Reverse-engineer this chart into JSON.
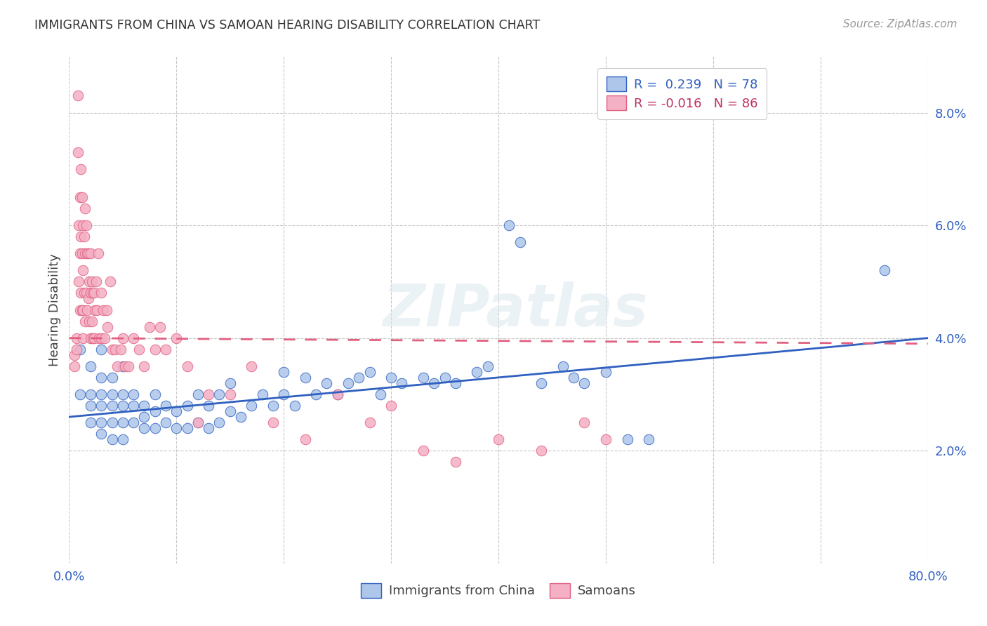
{
  "title": "IMMIGRANTS FROM CHINA VS SAMOAN HEARING DISABILITY CORRELATION CHART",
  "source": "Source: ZipAtlas.com",
  "ylabel": "Hearing Disability",
  "legend_entry_1": "R =  0.239   N = 78",
  "legend_entry_2": "R = -0.016   N = 86",
  "legend_labels": [
    "Immigrants from China",
    "Samoans"
  ],
  "xlim": [
    0,
    0.8
  ],
  "ylim": [
    0,
    0.09
  ],
  "xticks": [
    0.0,
    0.1,
    0.2,
    0.3,
    0.4,
    0.5,
    0.6,
    0.7,
    0.8
  ],
  "xtick_labels": [
    "0.0%",
    "",
    "",
    "",
    "",
    "",
    "",
    "",
    "80.0%"
  ],
  "yticks_right": [
    0.02,
    0.04,
    0.06,
    0.08
  ],
  "ytick_labels_right": [
    "2.0%",
    "4.0%",
    "6.0%",
    "8.0%"
  ],
  "watermark": "ZIPatlas",
  "blue_line_x0": 0.0,
  "blue_line_y0": 0.026,
  "blue_line_x1": 0.8,
  "blue_line_y1": 0.04,
  "pink_line_x0": 0.0,
  "pink_line_y0": 0.04,
  "pink_line_x1": 0.8,
  "pink_line_y1": 0.039,
  "blue_scatter_x": [
    0.01,
    0.01,
    0.02,
    0.02,
    0.02,
    0.02,
    0.03,
    0.03,
    0.03,
    0.03,
    0.03,
    0.03,
    0.04,
    0.04,
    0.04,
    0.04,
    0.04,
    0.05,
    0.05,
    0.05,
    0.05,
    0.05,
    0.06,
    0.06,
    0.06,
    0.07,
    0.07,
    0.07,
    0.08,
    0.08,
    0.08,
    0.09,
    0.09,
    0.1,
    0.1,
    0.11,
    0.11,
    0.12,
    0.12,
    0.13,
    0.13,
    0.14,
    0.14,
    0.15,
    0.15,
    0.16,
    0.17,
    0.18,
    0.19,
    0.2,
    0.2,
    0.21,
    0.22,
    0.23,
    0.24,
    0.25,
    0.26,
    0.27,
    0.28,
    0.29,
    0.3,
    0.31,
    0.33,
    0.34,
    0.35,
    0.36,
    0.38,
    0.39,
    0.41,
    0.42,
    0.44,
    0.46,
    0.47,
    0.48,
    0.5,
    0.52,
    0.54,
    0.76
  ],
  "blue_scatter_y": [
    0.038,
    0.03,
    0.035,
    0.03,
    0.028,
    0.025,
    0.038,
    0.033,
    0.03,
    0.028,
    0.025,
    0.023,
    0.033,
    0.03,
    0.028,
    0.025,
    0.022,
    0.035,
    0.03,
    0.028,
    0.025,
    0.022,
    0.03,
    0.028,
    0.025,
    0.028,
    0.026,
    0.024,
    0.03,
    0.027,
    0.024,
    0.028,
    0.025,
    0.027,
    0.024,
    0.028,
    0.024,
    0.03,
    0.025,
    0.028,
    0.024,
    0.03,
    0.025,
    0.032,
    0.027,
    0.026,
    0.028,
    0.03,
    0.028,
    0.034,
    0.03,
    0.028,
    0.033,
    0.03,
    0.032,
    0.03,
    0.032,
    0.033,
    0.034,
    0.03,
    0.033,
    0.032,
    0.033,
    0.032,
    0.033,
    0.032,
    0.034,
    0.035,
    0.06,
    0.057,
    0.032,
    0.035,
    0.033,
    0.032,
    0.034,
    0.022,
    0.022,
    0.052
  ],
  "pink_scatter_x": [
    0.005,
    0.005,
    0.007,
    0.007,
    0.008,
    0.008,
    0.009,
    0.009,
    0.01,
    0.01,
    0.01,
    0.011,
    0.011,
    0.011,
    0.012,
    0.012,
    0.012,
    0.013,
    0.013,
    0.013,
    0.013,
    0.014,
    0.014,
    0.015,
    0.015,
    0.015,
    0.016,
    0.016,
    0.017,
    0.017,
    0.018,
    0.018,
    0.019,
    0.019,
    0.02,
    0.02,
    0.02,
    0.021,
    0.021,
    0.022,
    0.022,
    0.023,
    0.023,
    0.024,
    0.025,
    0.026,
    0.027,
    0.028,
    0.03,
    0.03,
    0.032,
    0.033,
    0.035,
    0.036,
    0.038,
    0.04,
    0.043,
    0.045,
    0.048,
    0.05,
    0.052,
    0.055,
    0.06,
    0.065,
    0.07,
    0.075,
    0.08,
    0.085,
    0.09,
    0.1,
    0.11,
    0.12,
    0.13,
    0.15,
    0.17,
    0.19,
    0.22,
    0.25,
    0.28,
    0.3,
    0.33,
    0.36,
    0.4,
    0.44,
    0.48,
    0.5
  ],
  "pink_scatter_y": [
    0.037,
    0.035,
    0.04,
    0.038,
    0.083,
    0.073,
    0.06,
    0.05,
    0.065,
    0.055,
    0.045,
    0.07,
    0.058,
    0.048,
    0.065,
    0.055,
    0.045,
    0.06,
    0.052,
    0.045,
    0.04,
    0.058,
    0.048,
    0.063,
    0.055,
    0.043,
    0.06,
    0.048,
    0.055,
    0.045,
    0.055,
    0.047,
    0.05,
    0.043,
    0.055,
    0.048,
    0.04,
    0.05,
    0.043,
    0.048,
    0.04,
    0.048,
    0.04,
    0.045,
    0.05,
    0.045,
    0.055,
    0.04,
    0.048,
    0.04,
    0.045,
    0.04,
    0.045,
    0.042,
    0.05,
    0.038,
    0.038,
    0.035,
    0.038,
    0.04,
    0.035,
    0.035,
    0.04,
    0.038,
    0.035,
    0.042,
    0.038,
    0.042,
    0.038,
    0.04,
    0.035,
    0.025,
    0.03,
    0.03,
    0.035,
    0.025,
    0.022,
    0.03,
    0.025,
    0.028,
    0.02,
    0.018,
    0.022,
    0.02,
    0.025,
    0.022
  ],
  "blue_line_color": "#3060c0",
  "pink_line_color": "#e06080",
  "blue_marker_face": "#adc6ea",
  "blue_marker_edge": "#3060c0",
  "pink_marker_face": "#f4b0c4",
  "pink_marker_edge": "#e06080",
  "background_color": "#ffffff",
  "grid_color": "#c8c8c8"
}
